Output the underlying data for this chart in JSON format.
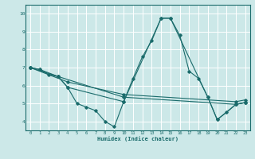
{
  "title": "",
  "xlabel": "Humidex (Indice chaleur)",
  "xlim": [
    -0.5,
    23.5
  ],
  "ylim": [
    3.5,
    10.5
  ],
  "xticks": [
    0,
    1,
    2,
    3,
    4,
    5,
    6,
    7,
    8,
    9,
    10,
    11,
    12,
    13,
    14,
    15,
    16,
    17,
    18,
    19,
    20,
    21,
    22,
    23
  ],
  "yticks": [
    4,
    5,
    6,
    7,
    8,
    9,
    10
  ],
  "bg_color": "#cce8e8",
  "grid_color": "#ffffff",
  "line_color": "#1a6b6b",
  "lines": [
    {
      "x": [
        0,
        1,
        2,
        3,
        4,
        5,
        6,
        7,
        8,
        9,
        10,
        11,
        12,
        13,
        14,
        15,
        16,
        17,
        18,
        19,
        20,
        21,
        22,
        23
      ],
      "y": [
        7.0,
        6.9,
        6.6,
        6.5,
        5.9,
        5.0,
        4.8,
        4.6,
        4.0,
        3.7,
        5.1,
        6.4,
        7.6,
        8.5,
        9.75,
        9.75,
        8.8,
        6.8,
        6.4,
        5.35,
        4.1,
        4.5,
        4.95,
        5.05
      ]
    },
    {
      "x": [
        0,
        1,
        3,
        4,
        10,
        14,
        15,
        19,
        20,
        22,
        23
      ],
      "y": [
        7.0,
        6.9,
        6.5,
        5.9,
        5.1,
        9.75,
        9.75,
        5.35,
        4.1,
        4.95,
        5.05
      ]
    },
    {
      "x": [
        0,
        3,
        10,
        22,
        23
      ],
      "y": [
        7.0,
        6.5,
        5.35,
        4.95,
        5.05
      ]
    },
    {
      "x": [
        0,
        4,
        10,
        22,
        23
      ],
      "y": [
        7.0,
        6.2,
        5.5,
        5.1,
        5.2
      ]
    }
  ]
}
